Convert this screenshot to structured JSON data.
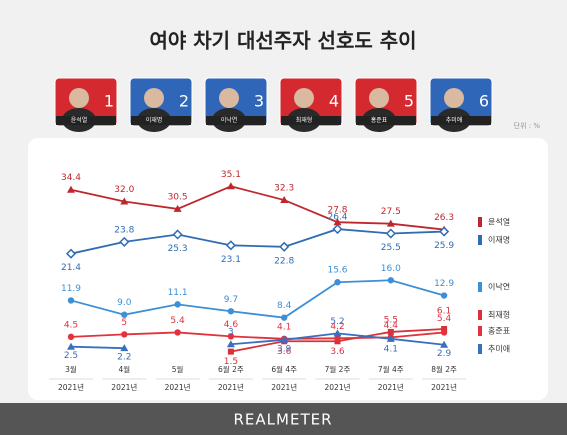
{
  "chart_data": {
    "type": "line",
    "title": "여야 차기 대선주자 선호도 추이",
    "unit_label": "단위 : %",
    "categories": [
      "3월",
      "4월",
      "5월",
      "6월 2주",
      "6월 4주",
      "7월 2주",
      "7월 4주",
      "8월 2주"
    ],
    "year_labels": [
      "2021년",
      "2021년",
      "2021년",
      "2021년",
      "2021년",
      "2021년",
      "2021년",
      "2021년"
    ],
    "ylim": [
      0,
      38
    ],
    "series": [
      {
        "name": "윤석열",
        "color": "#c0272d",
        "marker": "triangle",
        "values": [
          34.4,
          32.0,
          30.5,
          35.1,
          32.3,
          27.8,
          27.5,
          26.3
        ],
        "value_labels": [
          "34.4",
          "32.0",
          "30.5",
          "35.1",
          "32.3",
          "27.8",
          "27.5",
          "26.3"
        ]
      },
      {
        "name": "이재명",
        "color": "#2f6cb3",
        "marker": "diamond",
        "values": [
          21.4,
          23.8,
          25.3,
          23.1,
          22.8,
          26.4,
          25.5,
          25.9
        ]
      },
      {
        "name": "이낙연",
        "color": "#3d8fd6",
        "marker": "circle",
        "values": [
          11.9,
          9.0,
          11.1,
          9.7,
          8.4,
          15.6,
          16.0,
          12.9
        ],
        "value_labels": [
          "11.9",
          "9.0",
          "11.1",
          "9.7",
          "8.4",
          "15.6",
          "16.0",
          "12.9"
        ]
      },
      {
        "name": "최재형",
        "color": "#d9313a",
        "marker": "square",
        "values": [
          null,
          null,
          null,
          1.5,
          3.6,
          3.6,
          5.5,
          6.1
        ]
      },
      {
        "name": "홍준표",
        "color": "#e2323c",
        "marker": "circle",
        "values": [
          4.5,
          5.0,
          5.4,
          4.6,
          4.1,
          4.2,
          4.4,
          5.4
        ]
      },
      {
        "name": "추미애",
        "color": "#3a6fbf",
        "marker": "triangle",
        "values": [
          2.5,
          2.2,
          null,
          3.0,
          3.9,
          5.2,
          4.1,
          2.9
        ]
      }
    ]
  },
  "candidates": [
    {
      "name": "윤석열",
      "number": 1,
      "color": "#d42a2f"
    },
    {
      "name": "이재명",
      "number": 2,
      "color": "#2f66b8"
    },
    {
      "name": "이낙연",
      "number": 3,
      "color": "#2f66b8"
    },
    {
      "name": "최재형",
      "number": 4,
      "color": "#d42a2f"
    },
    {
      "name": "홍준표",
      "number": 5,
      "color": "#d42a2f"
    },
    {
      "name": "추미애",
      "number": 6,
      "color": "#2f66b8"
    }
  ],
  "footer": "REALMETER"
}
